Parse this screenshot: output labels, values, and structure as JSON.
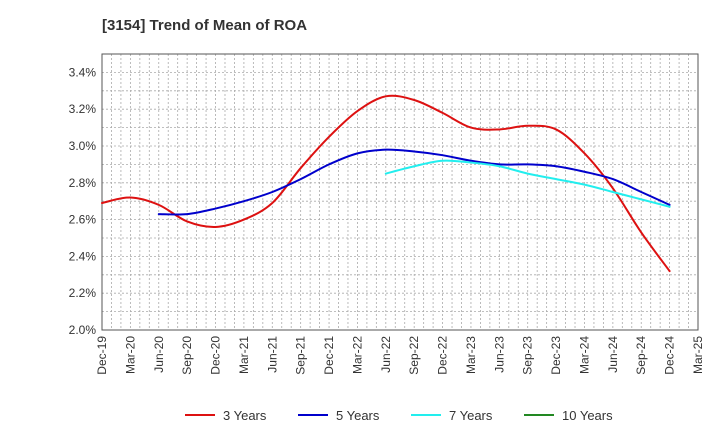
{
  "chart_data": {
    "type": "line",
    "title": "[3154]  Trend of Mean of ROA",
    "xlabel": "",
    "ylabel": "",
    "x_ticks": [
      "Dec-19",
      "Mar-20",
      "Jun-20",
      "Sep-20",
      "Dec-20",
      "Mar-21",
      "Jun-21",
      "Sep-21",
      "Dec-21",
      "Mar-22",
      "Jun-22",
      "Sep-22",
      "Dec-22",
      "Mar-23",
      "Jun-23",
      "Sep-23",
      "Dec-23",
      "Mar-24",
      "Jun-24",
      "Sep-24",
      "Dec-24",
      "Mar-25"
    ],
    "y_ticks": [
      "2.0%",
      "2.2%",
      "2.4%",
      "2.6%",
      "2.8%",
      "3.0%",
      "3.2%",
      "3.4%"
    ],
    "ylim": [
      2.0,
      3.5
    ],
    "grid": true,
    "legend_position": "bottom",
    "series": [
      {
        "name": "3 Years",
        "color": "#dd1111",
        "x": [
          "Dec-19",
          "Mar-20",
          "Jun-20",
          "Sep-20",
          "Dec-20",
          "Mar-21",
          "Jun-21",
          "Sep-21",
          "Dec-21",
          "Mar-22",
          "Jun-22",
          "Sep-22",
          "Dec-22",
          "Mar-23",
          "Jun-23",
          "Sep-23",
          "Dec-23",
          "Mar-24",
          "Jun-24",
          "Sep-24",
          "Dec-24"
        ],
        "values": [
          2.69,
          2.72,
          2.68,
          2.59,
          2.56,
          2.6,
          2.69,
          2.88,
          3.05,
          3.19,
          3.27,
          3.25,
          3.18,
          3.1,
          3.09,
          3.11,
          3.09,
          2.96,
          2.77,
          2.53,
          2.32
        ]
      },
      {
        "name": "5 Years",
        "color": "#0000cc",
        "x": [
          "Jun-20",
          "Sep-20",
          "Dec-20",
          "Mar-21",
          "Jun-21",
          "Sep-21",
          "Dec-21",
          "Mar-22",
          "Jun-22",
          "Sep-22",
          "Dec-22",
          "Mar-23",
          "Jun-23",
          "Sep-23",
          "Dec-23",
          "Mar-24",
          "Jun-24",
          "Sep-24",
          "Dec-24"
        ],
        "values": [
          2.63,
          2.63,
          2.66,
          2.7,
          2.75,
          2.82,
          2.9,
          2.96,
          2.98,
          2.97,
          2.95,
          2.92,
          2.9,
          2.9,
          2.89,
          2.86,
          2.82,
          2.75,
          2.68
        ]
      },
      {
        "name": "7 Years",
        "color": "#22eeee",
        "x": [
          "Jun-22",
          "Sep-22",
          "Dec-22",
          "Mar-23",
          "Jun-23",
          "Sep-23",
          "Dec-23",
          "Mar-24",
          "Jun-24",
          "Sep-24",
          "Dec-24"
        ],
        "values": [
          2.85,
          2.89,
          2.92,
          2.91,
          2.89,
          2.85,
          2.82,
          2.79,
          2.75,
          2.71,
          2.67
        ]
      },
      {
        "name": "10 Years",
        "color": "#228822",
        "x": [],
        "values": []
      }
    ]
  }
}
